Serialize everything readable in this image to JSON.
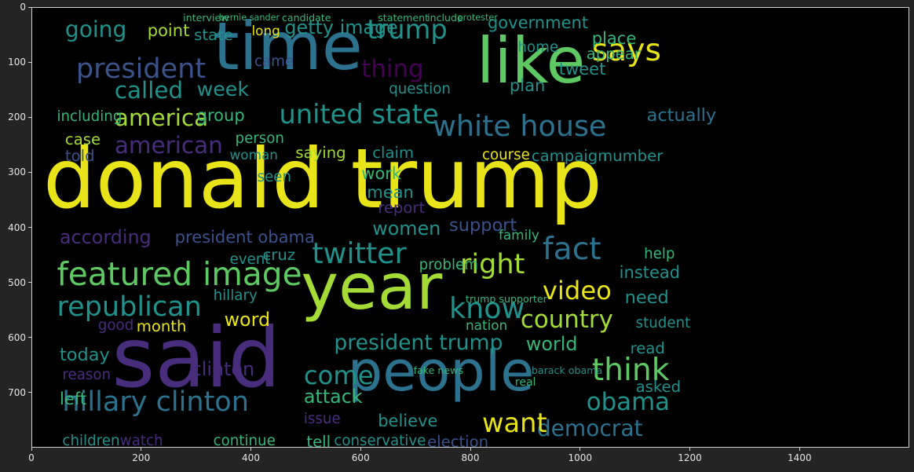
{
  "figure": {
    "background": "#242424",
    "plot_background": "#000000",
    "spine_color": "#cfcfcf",
    "tick_color": "#e6e6e6"
  },
  "axes": {
    "x_ticks": [
      0,
      200,
      400,
      600,
      800,
      1000,
      1200,
      1400
    ],
    "y_ticks": [
      0,
      100,
      200,
      300,
      400,
      500,
      600,
      700
    ],
    "x_range": [
      0,
      1600
    ],
    "y_range": [
      0,
      800
    ]
  },
  "palette": {
    "yellow": "#e8e419",
    "lime": "#a5db36",
    "green": "#5ec962",
    "teal_green": "#35b779",
    "teal": "#21918c",
    "blue_teal": "#2c728e",
    "blue": "#3b528b",
    "indigo": "#472d7b",
    "purple": "#440154"
  },
  "words": [
    {
      "text": "donald trump",
      "x": 20,
      "y": 235,
      "size": 150,
      "color": "yellow"
    },
    {
      "text": "said",
      "x": 145,
      "y": 560,
      "size": 150,
      "color": "indigo"
    },
    {
      "text": "year",
      "x": 490,
      "y": 450,
      "size": 115,
      "color": "lime"
    },
    {
      "text": "time",
      "x": 330,
      "y": 10,
      "size": 120,
      "color": "blue_teal"
    },
    {
      "text": "like",
      "x": 810,
      "y": 40,
      "size": 115,
      "color": "green"
    },
    {
      "text": "people",
      "x": 575,
      "y": 610,
      "size": 100,
      "color": "blue_teal"
    },
    {
      "text": "featured image",
      "x": 45,
      "y": 455,
      "size": 58,
      "color": "green"
    },
    {
      "text": "republican",
      "x": 45,
      "y": 518,
      "size": 50,
      "color": "teal"
    },
    {
      "text": "hillary clinton",
      "x": 55,
      "y": 690,
      "size": 50,
      "color": "blue_teal"
    },
    {
      "text": "president",
      "x": 80,
      "y": 85,
      "size": 50,
      "color": "blue"
    },
    {
      "text": "america",
      "x": 150,
      "y": 180,
      "size": 42,
      "color": "lime"
    },
    {
      "text": "american",
      "x": 150,
      "y": 230,
      "size": 42,
      "color": "indigo"
    },
    {
      "text": "called",
      "x": 150,
      "y": 130,
      "size": 42,
      "color": "teal"
    },
    {
      "text": "according",
      "x": 50,
      "y": 400,
      "size": 34,
      "color": "indigo"
    },
    {
      "text": "including",
      "x": 45,
      "y": 185,
      "size": 26,
      "color": "teal_green"
    },
    {
      "text": "going",
      "x": 60,
      "y": 20,
      "size": 40,
      "color": "teal"
    },
    {
      "text": "point",
      "x": 210,
      "y": 25,
      "size": 30,
      "color": "lime"
    },
    {
      "text": "state",
      "x": 295,
      "y": 35,
      "size": 28,
      "color": "teal"
    },
    {
      "text": "week",
      "x": 300,
      "y": 130,
      "size": 36,
      "color": "teal"
    },
    {
      "text": "group",
      "x": 300,
      "y": 180,
      "size": 30,
      "color": "teal_green"
    },
    {
      "text": "case",
      "x": 60,
      "y": 225,
      "size": 28,
      "color": "lime"
    },
    {
      "text": "told",
      "x": 60,
      "y": 255,
      "size": 28,
      "color": "blue"
    },
    {
      "text": "president obama",
      "x": 260,
      "y": 400,
      "size": 30,
      "color": "blue"
    },
    {
      "text": "getty image",
      "x": 460,
      "y": 20,
      "size": 34,
      "color": "teal"
    },
    {
      "text": "trump",
      "x": 610,
      "y": 15,
      "size": 48,
      "color": "teal"
    },
    {
      "text": "thing",
      "x": 600,
      "y": 90,
      "size": 44,
      "color": "purple"
    },
    {
      "text": "united state",
      "x": 450,
      "y": 170,
      "size": 48,
      "color": "teal"
    },
    {
      "text": "white house",
      "x": 730,
      "y": 190,
      "size": 52,
      "color": "blue_teal"
    },
    {
      "text": "government",
      "x": 830,
      "y": 12,
      "size": 30,
      "color": "teal"
    },
    {
      "text": "says",
      "x": 1020,
      "y": 50,
      "size": 56,
      "color": "yellow"
    },
    {
      "text": "tweet",
      "x": 960,
      "y": 95,
      "size": 30,
      "color": "teal"
    },
    {
      "text": "place",
      "x": 1020,
      "y": 40,
      "size": 30,
      "color": "teal_green"
    },
    {
      "text": "appear",
      "x": 1010,
      "y": 70,
      "size": 28,
      "color": "teal_green"
    },
    {
      "text": "plan",
      "x": 870,
      "y": 125,
      "size": 30,
      "color": "teal"
    },
    {
      "text": "home",
      "x": 885,
      "y": 60,
      "size": 26,
      "color": "teal"
    },
    {
      "text": "twitter",
      "x": 510,
      "y": 420,
      "size": 52,
      "color": "teal"
    },
    {
      "text": "women",
      "x": 620,
      "y": 385,
      "size": 34,
      "color": "teal"
    },
    {
      "text": "mean",
      "x": 610,
      "y": 320,
      "size": 30,
      "color": "teal"
    },
    {
      "text": "work",
      "x": 600,
      "y": 285,
      "size": 30,
      "color": "teal_green"
    },
    {
      "text": "saying",
      "x": 480,
      "y": 250,
      "size": 28,
      "color": "lime"
    },
    {
      "text": "claim",
      "x": 620,
      "y": 250,
      "size": 28,
      "color": "teal"
    },
    {
      "text": "report",
      "x": 630,
      "y": 350,
      "size": 28,
      "color": "indigo"
    },
    {
      "text": "fact",
      "x": 930,
      "y": 410,
      "size": 56,
      "color": "blue_teal"
    },
    {
      "text": "right",
      "x": 780,
      "y": 440,
      "size": 50,
      "color": "lime"
    },
    {
      "text": "video",
      "x": 930,
      "y": 490,
      "size": 46,
      "color": "yellow"
    },
    {
      "text": "know",
      "x": 760,
      "y": 520,
      "size": 52,
      "color": "teal"
    },
    {
      "text": "country",
      "x": 890,
      "y": 545,
      "size": 44,
      "color": "lime"
    },
    {
      "text": "need",
      "x": 1080,
      "y": 510,
      "size": 32,
      "color": "teal"
    },
    {
      "text": "instead",
      "x": 1070,
      "y": 465,
      "size": 30,
      "color": "teal"
    },
    {
      "text": "student",
      "x": 1100,
      "y": 560,
      "size": 26,
      "color": "teal"
    },
    {
      "text": "think",
      "x": 1020,
      "y": 630,
      "size": 56,
      "color": "green"
    },
    {
      "text": "obama",
      "x": 1010,
      "y": 695,
      "size": 44,
      "color": "teal"
    },
    {
      "text": "democrat",
      "x": 920,
      "y": 745,
      "size": 40,
      "color": "blue_teal"
    },
    {
      "text": "want",
      "x": 820,
      "y": 730,
      "size": 48,
      "color": "yellow"
    },
    {
      "text": "president trump",
      "x": 550,
      "y": 590,
      "size": 38,
      "color": "teal"
    },
    {
      "text": "world",
      "x": 900,
      "y": 595,
      "size": 34,
      "color": "teal_green"
    },
    {
      "text": "read",
      "x": 1090,
      "y": 605,
      "size": 28,
      "color": "teal"
    },
    {
      "text": "asked",
      "x": 1100,
      "y": 675,
      "size": 28,
      "color": "teal"
    },
    {
      "text": "come",
      "x": 495,
      "y": 645,
      "size": 46,
      "color": "teal"
    },
    {
      "text": "attack",
      "x": 495,
      "y": 690,
      "size": 34,
      "color": "teal_green"
    },
    {
      "text": "believe",
      "x": 630,
      "y": 735,
      "size": 30,
      "color": "teal"
    },
    {
      "text": "conservative",
      "x": 550,
      "y": 775,
      "size": 26,
      "color": "teal"
    },
    {
      "text": "election",
      "x": 720,
      "y": 775,
      "size": 28,
      "color": "blue"
    },
    {
      "text": "tell",
      "x": 500,
      "y": 775,
      "size": 28,
      "color": "teal_green"
    },
    {
      "text": "issue",
      "x": 495,
      "y": 735,
      "size": 26,
      "color": "indigo"
    },
    {
      "text": "continue",
      "x": 330,
      "y": 775,
      "size": 26,
      "color": "teal_green"
    },
    {
      "text": "children",
      "x": 55,
      "y": 775,
      "size": 26,
      "color": "teal"
    },
    {
      "text": "watch",
      "x": 160,
      "y": 775,
      "size": 26,
      "color": "indigo"
    },
    {
      "text": "left",
      "x": 50,
      "y": 695,
      "size": 30,
      "color": "teal_green"
    },
    {
      "text": "today",
      "x": 50,
      "y": 615,
      "size": 32,
      "color": "teal"
    },
    {
      "text": "month",
      "x": 190,
      "y": 565,
      "size": 28,
      "color": "yellow"
    },
    {
      "text": "word",
      "x": 350,
      "y": 550,
      "size": 34,
      "color": "yellow"
    },
    {
      "text": "hillary",
      "x": 330,
      "y": 510,
      "size": 26,
      "color": "teal"
    },
    {
      "text": "cruz",
      "x": 420,
      "y": 435,
      "size": 28,
      "color": "teal"
    },
    {
      "text": "event",
      "x": 360,
      "y": 445,
      "size": 26,
      "color": "teal"
    },
    {
      "text": "support",
      "x": 760,
      "y": 380,
      "size": 32,
      "color": "blue"
    },
    {
      "text": "course",
      "x": 820,
      "y": 255,
      "size": 26,
      "color": "yellow"
    },
    {
      "text": "campaign",
      "x": 910,
      "y": 255,
      "size": 28,
      "color": "teal"
    },
    {
      "text": "number",
      "x": 1040,
      "y": 255,
      "size": 28,
      "color": "teal"
    },
    {
      "text": "family",
      "x": 850,
      "y": 400,
      "size": 24,
      "color": "teal_green"
    },
    {
      "text": "problem",
      "x": 705,
      "y": 455,
      "size": 26,
      "color": "teal_green"
    },
    {
      "text": "question",
      "x": 650,
      "y": 135,
      "size": 26,
      "color": "teal"
    },
    {
      "text": "person",
      "x": 370,
      "y": 225,
      "size": 26,
      "color": "teal_green"
    },
    {
      "text": "woman",
      "x": 360,
      "y": 255,
      "size": 24,
      "color": "teal"
    },
    {
      "text": "seen",
      "x": 410,
      "y": 295,
      "size": 26,
      "color": "teal"
    },
    {
      "text": "long",
      "x": 400,
      "y": 30,
      "size": 24,
      "color": "yellow"
    },
    {
      "text": "came",
      "x": 405,
      "y": 85,
      "size": 26,
      "color": "blue"
    },
    {
      "text": "actually",
      "x": 1120,
      "y": 180,
      "size": 32,
      "color": "blue_teal"
    },
    {
      "text": "help",
      "x": 1115,
      "y": 435,
      "size": 26,
      "color": "teal_green"
    },
    {
      "text": "good",
      "x": 120,
      "y": 565,
      "size": 26,
      "color": "indigo"
    },
    {
      "text": "reason",
      "x": 55,
      "y": 655,
      "size": 26,
      "color": "indigo"
    },
    {
      "text": "clinton",
      "x": 290,
      "y": 640,
      "size": 34,
      "color": "indigo"
    },
    {
      "text": "fake news",
      "x": 695,
      "y": 650,
      "size": 18,
      "color": "teal_green"
    },
    {
      "text": "barack obama",
      "x": 910,
      "y": 650,
      "size": 18,
      "color": "teal"
    },
    {
      "text": "trump supporter",
      "x": 790,
      "y": 520,
      "size": 18,
      "color": "teal_green"
    },
    {
      "text": "nation",
      "x": 790,
      "y": 565,
      "size": 24,
      "color": "teal_green"
    },
    {
      "text": "real",
      "x": 880,
      "y": 670,
      "size": 20,
      "color": "teal_green"
    },
    {
      "text": "interview",
      "x": 275,
      "y": 10,
      "size": 18,
      "color": "teal_green"
    },
    {
      "text": "bernie sander",
      "x": 340,
      "y": 10,
      "size": 16,
      "color": "teal_green"
    },
    {
      "text": "candidate",
      "x": 455,
      "y": 10,
      "size": 18,
      "color": "teal_green"
    },
    {
      "text": "statement",
      "x": 630,
      "y": 10,
      "size": 18,
      "color": "teal_green"
    },
    {
      "text": "include",
      "x": 720,
      "y": 10,
      "size": 18,
      "color": "teal_green"
    },
    {
      "text": "protester",
      "x": 775,
      "y": 10,
      "size": 16,
      "color": "teal_green"
    }
  ]
}
